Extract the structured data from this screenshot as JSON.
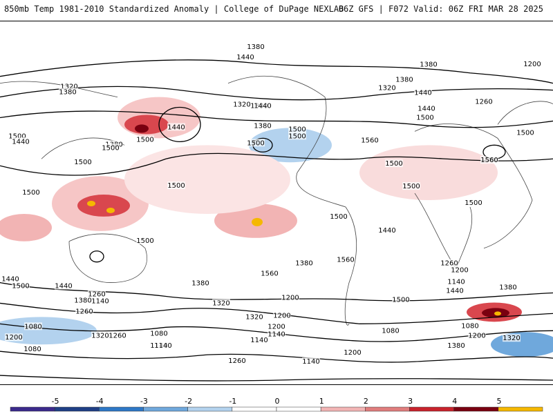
{
  "header": {
    "left_title": "850mb Temp 1981-2010 Standardized Anomaly | College of DuPage NEXLAB",
    "right_title": "06Z GFS | F072 Valid: 06Z FRI MAR 28 2025"
  },
  "contour_labels": [
    "1380",
    "1440",
    "1320",
    "1380",
    "1200",
    "1320",
    "1380",
    "1440",
    "1380",
    "1320",
    "1380",
    "1260",
    "1440",
    "1500",
    "1440",
    "1380",
    "1500",
    "1500",
    "1500",
    "1440",
    "1380",
    "1500",
    "1440",
    "1500",
    "1500",
    "1560",
    "1500",
    "1500",
    "1560",
    "1500",
    "1500",
    "1500",
    "1500",
    "1500",
    "1500",
    "1440",
    "1560",
    "1500",
    "1440",
    "1500",
    "1440",
    "1380",
    "1560",
    "1380",
    "1260",
    "1200",
    "1140",
    "1500",
    "1440",
    "1380",
    "1320",
    "1200",
    "1260",
    "1140",
    "1380",
    "1260",
    "1320",
    "1200",
    "1080",
    "1080",
    "1200",
    "1140",
    "1320",
    "1260",
    "1200",
    "1080",
    "1140",
    "1080",
    "1140",
    "1200",
    "1140",
    "1080",
    "1200",
    "1320",
    "1380",
    "1260",
    "1140",
    "1200"
  ],
  "colorbar": {
    "ticks": [
      "-5",
      "-4",
      "-3",
      "-2",
      "-1",
      "0",
      "1",
      "2",
      "3",
      "4",
      "5"
    ],
    "colors": [
      "#3b2a8c",
      "#1f3f86",
      "#2e78c6",
      "#6fa8dc",
      "#b3d2ee",
      "#ffffff",
      "#ffffff",
      "#f2b4b4",
      "#e07d7d",
      "#c8232c",
      "#7a0010",
      "#f5b800"
    ]
  }
}
